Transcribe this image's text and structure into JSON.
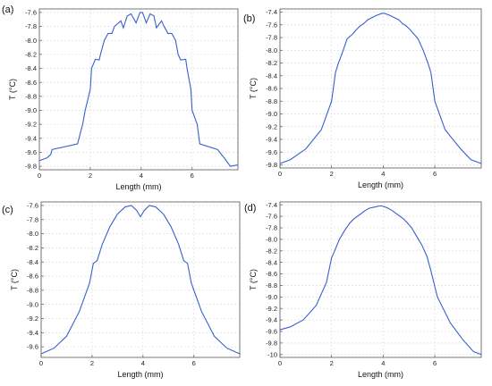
{
  "chart_data": [
    {
      "panel": "(a)",
      "type": "line",
      "xlabel": "Length (mm)",
      "ylabel": "T (°C)",
      "xlim": [
        0,
        7.8
      ],
      "ylim": [
        -9.85,
        -7.55
      ],
      "xticks": [
        "0",
        "2",
        "4",
        "6"
      ],
      "yticks": [
        "-7.6",
        "-7.8",
        "-8.0",
        "-8.2",
        "-8.4",
        "-8.6",
        "-8.8",
        "-9.0",
        "-9.2",
        "-9.4",
        "-9.6",
        "-9.8"
      ],
      "grid": true,
      "series": [
        {
          "x": [
            0,
            0.3,
            0.45,
            0.5,
            1.5,
            1.7,
            1.8,
            2.0,
            2.05,
            2.2,
            2.35,
            2.4,
            2.55,
            2.7,
            2.85,
            2.95,
            3.2,
            3.3,
            3.45,
            3.6,
            3.8,
            3.95,
            4.05,
            4.2,
            4.35,
            4.5,
            4.6,
            4.8,
            4.9,
            5.05,
            5.2,
            5.35,
            5.45,
            5.55,
            5.75,
            5.8,
            5.95,
            6.0,
            6.2,
            6.3,
            7.0,
            7.3,
            7.5,
            7.8
          ],
          "y": [
            -9.72,
            -9.68,
            -9.63,
            -9.56,
            -9.48,
            -9.2,
            -9.0,
            -8.7,
            -8.4,
            -8.27,
            -8.28,
            -8.2,
            -8.0,
            -7.9,
            -7.9,
            -7.8,
            -7.72,
            -7.82,
            -7.65,
            -7.62,
            -7.75,
            -7.6,
            -7.6,
            -7.75,
            -7.62,
            -7.65,
            -7.82,
            -7.72,
            -7.8,
            -7.9,
            -7.9,
            -8.0,
            -8.2,
            -8.28,
            -8.27,
            -8.4,
            -8.7,
            -9.0,
            -9.2,
            -9.48,
            -9.56,
            -9.7,
            -9.8,
            -9.78
          ]
        }
      ]
    },
    {
      "panel": "(b)",
      "type": "line",
      "xlabel": "Length (mm)",
      "ylabel": "T (°C)",
      "xlim": [
        0,
        7.8
      ],
      "ylim": [
        -9.85,
        -7.35
      ],
      "xticks": [
        "0",
        "2",
        "4",
        "6"
      ],
      "yticks": [
        "-7.4",
        "-7.6",
        "-7.8",
        "-8.0",
        "-8.2",
        "-8.4",
        "-8.6",
        "-8.8",
        "-9.0",
        "-9.2",
        "-9.4",
        "-9.6",
        "-9.8"
      ],
      "grid": true,
      "series": [
        {
          "x": [
            0,
            0.4,
            1.0,
            1.6,
            2.0,
            2.15,
            2.25,
            2.45,
            2.6,
            2.8,
            2.95,
            3.1,
            3.25,
            3.4,
            3.6,
            3.75,
            3.95,
            4.05,
            4.25,
            4.4,
            4.6,
            4.75,
            4.9,
            5.05,
            5.2,
            5.35,
            5.55,
            5.75,
            5.85,
            6.0,
            6.4,
            7.0,
            7.4,
            7.8
          ],
          "y": [
            -9.78,
            -9.72,
            -9.55,
            -9.25,
            -8.8,
            -8.35,
            -8.22,
            -8.0,
            -7.82,
            -7.75,
            -7.68,
            -7.62,
            -7.58,
            -7.52,
            -7.48,
            -7.45,
            -7.42,
            -7.42,
            -7.45,
            -7.48,
            -7.52,
            -7.58,
            -7.62,
            -7.68,
            -7.75,
            -7.82,
            -8.0,
            -8.22,
            -8.35,
            -8.8,
            -9.25,
            -9.55,
            -9.72,
            -9.78
          ]
        }
      ]
    },
    {
      "panel": "(c)",
      "type": "line",
      "xlabel": "Length (mm)",
      "ylabel": "T (°C)",
      "xlim": [
        0,
        7.8
      ],
      "ylim": [
        -9.75,
        -7.55
      ],
      "xticks": [
        "0",
        "2",
        "4",
        "6"
      ],
      "yticks": [
        "-7.6",
        "-7.8",
        "-8.0",
        "-8.2",
        "-8.4",
        "-8.6",
        "-8.8",
        "-9.0",
        "-9.2",
        "-9.4",
        "-9.6"
      ],
      "grid": true,
      "series": [
        {
          "x": [
            0,
            0.5,
            1.0,
            1.5,
            1.9,
            2.05,
            2.2,
            2.4,
            2.7,
            3.0,
            3.3,
            3.55,
            3.75,
            3.9,
            4.05,
            4.25,
            4.5,
            4.8,
            5.1,
            5.4,
            5.6,
            5.75,
            5.9,
            6.3,
            6.8,
            7.3,
            7.8
          ],
          "y": [
            -9.7,
            -9.62,
            -9.45,
            -9.1,
            -8.7,
            -8.42,
            -8.38,
            -8.15,
            -7.9,
            -7.72,
            -7.62,
            -7.6,
            -7.67,
            -7.76,
            -7.67,
            -7.6,
            -7.62,
            -7.72,
            -7.9,
            -8.15,
            -8.38,
            -8.42,
            -8.7,
            -9.1,
            -9.45,
            -9.62,
            -9.7
          ]
        }
      ]
    },
    {
      "panel": "(d)",
      "type": "line",
      "xlabel": "Length (mm)",
      "ylabel": "T (°C)",
      "xlim": [
        0,
        7.8
      ],
      "ylim": [
        -10.05,
        -7.35
      ],
      "xticks": [
        "0",
        "2",
        "4",
        "6"
      ],
      "yticks": [
        "-7.4",
        "-7.6",
        "-7.8",
        "-8.0",
        "-8.2",
        "-8.4",
        "-8.6",
        "-8.8",
        "-9.0",
        "-9.2",
        "-9.4",
        "-9.6",
        "-9.8",
        "-10"
      ],
      "grid": true,
      "series": [
        {
          "x": [
            0,
            0.4,
            0.9,
            1.4,
            1.8,
            2.0,
            2.1,
            2.3,
            2.5,
            2.7,
            2.85,
            3.0,
            3.15,
            3.3,
            3.45,
            3.65,
            3.85,
            3.95,
            4.15,
            4.35,
            4.5,
            4.65,
            4.8,
            4.95,
            5.1,
            5.3,
            5.5,
            5.7,
            5.85,
            6.1,
            6.6,
            7.1,
            7.5,
            7.8
          ],
          "y": [
            -9.57,
            -9.52,
            -9.4,
            -9.15,
            -8.75,
            -8.32,
            -8.22,
            -8.0,
            -7.85,
            -7.72,
            -7.65,
            -7.6,
            -7.55,
            -7.5,
            -7.46,
            -7.44,
            -7.42,
            -7.42,
            -7.45,
            -7.5,
            -7.55,
            -7.6,
            -7.65,
            -7.72,
            -7.8,
            -7.95,
            -8.1,
            -8.3,
            -8.55,
            -9.0,
            -9.45,
            -9.75,
            -9.95,
            -10.0
          ]
        }
      ]
    }
  ]
}
